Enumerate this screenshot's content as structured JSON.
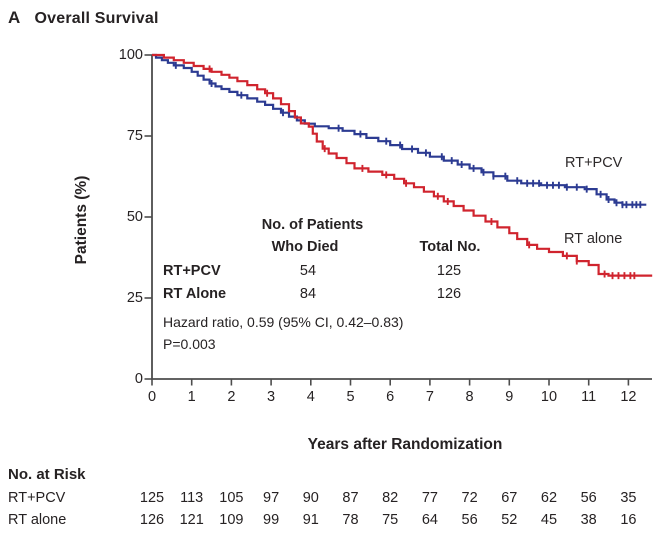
{
  "figure": {
    "panel_letter": "A",
    "title": "Overall Survival"
  },
  "chart_data": {
    "type": "line",
    "subtype": "kaplan-meier-step",
    "title": "Overall Survival",
    "xlabel": "Years after Randomization",
    "ylabel": "Patients (%)",
    "xlim": [
      0,
      12.7
    ],
    "ylim": [
      0,
      100
    ],
    "xticks": [
      0,
      1,
      2,
      3,
      4,
      5,
      6,
      7,
      8,
      9,
      10,
      11,
      12
    ],
    "yticks": [
      0,
      25,
      50,
      75,
      100
    ],
    "grid": false,
    "legend_position": "inline-right",
    "series": [
      {
        "name": "RT+PCV",
        "color": "#2c3b92",
        "points": [
          [
            0,
            100
          ],
          [
            0.1,
            99.2
          ],
          [
            0.25,
            98.4
          ],
          [
            0.4,
            97.6
          ],
          [
            0.55,
            96.8
          ],
          [
            0.8,
            96
          ],
          [
            1.0,
            94.8
          ],
          [
            1.15,
            93.6
          ],
          [
            1.3,
            92.4
          ],
          [
            1.45,
            91.2
          ],
          [
            1.6,
            90.3
          ],
          [
            1.75,
            89.5
          ],
          [
            1.95,
            88.6
          ],
          [
            2.15,
            87.6
          ],
          [
            2.4,
            86.6
          ],
          [
            2.65,
            85.6
          ],
          [
            2.85,
            84.6
          ],
          [
            3.05,
            83.4
          ],
          [
            3.25,
            82.2
          ],
          [
            3.45,
            81.0
          ],
          [
            3.65,
            79.8
          ],
          [
            3.85,
            78.8
          ],
          [
            4.1,
            78.0
          ],
          [
            4.45,
            77.4
          ],
          [
            4.8,
            76.6
          ],
          [
            5.1,
            75.6
          ],
          [
            5.4,
            74.4
          ],
          [
            5.7,
            73.4
          ],
          [
            6.0,
            72.2
          ],
          [
            6.3,
            71.0
          ],
          [
            6.7,
            69.8
          ],
          [
            7.0,
            68.6
          ],
          [
            7.35,
            67.4
          ],
          [
            7.7,
            66.2
          ],
          [
            8.0,
            65.0
          ],
          [
            8.3,
            63.8
          ],
          [
            8.6,
            62.6
          ],
          [
            8.95,
            61.2
          ],
          [
            9.3,
            60.4
          ],
          [
            9.8,
            59.8
          ],
          [
            10.4,
            59.2
          ],
          [
            10.9,
            58.6
          ],
          [
            11.2,
            57.0
          ],
          [
            11.45,
            55.4
          ],
          [
            11.65,
            54.4
          ],
          [
            11.85,
            53.8
          ],
          [
            12.45,
            53.8
          ]
        ],
        "censor_x": [
          0.6,
          1.5,
          2.25,
          3.3,
          4.7,
          5.25,
          5.9,
          6.25,
          6.55,
          6.9,
          7.3,
          7.55,
          7.8,
          8.1,
          8.35,
          8.6,
          8.9,
          9.2,
          9.45,
          9.6,
          9.75,
          9.95,
          10.1,
          10.25,
          10.45,
          10.7,
          10.95,
          11.3,
          11.5,
          11.7,
          11.85,
          11.95,
          12.1,
          12.2,
          12.3
        ]
      },
      {
        "name": "RT alone",
        "color": "#d0242e",
        "points": [
          [
            0,
            100
          ],
          [
            0.3,
            99.2
          ],
          [
            0.55,
            98.4
          ],
          [
            0.8,
            97.6
          ],
          [
            1.05,
            96.6
          ],
          [
            1.3,
            95.7
          ],
          [
            1.5,
            94.8
          ],
          [
            1.75,
            93.9
          ],
          [
            1.95,
            93.0
          ],
          [
            2.15,
            91.9
          ],
          [
            2.4,
            90.7
          ],
          [
            2.65,
            89.4
          ],
          [
            2.85,
            88.2
          ],
          [
            3.05,
            86.6
          ],
          [
            3.25,
            84.8
          ],
          [
            3.45,
            82.7
          ],
          [
            3.6,
            80.7
          ],
          [
            3.75,
            78.9
          ],
          [
            3.95,
            77.9
          ],
          [
            4.05,
            75.7
          ],
          [
            4.15,
            73.3
          ],
          [
            4.3,
            71.1
          ],
          [
            4.45,
            69.6
          ],
          [
            4.65,
            68.2
          ],
          [
            4.9,
            66.6
          ],
          [
            5.1,
            65.0
          ],
          [
            5.45,
            64.0
          ],
          [
            5.8,
            63.0
          ],
          [
            6.1,
            61.8
          ],
          [
            6.35,
            60.4
          ],
          [
            6.6,
            59.2
          ],
          [
            6.85,
            57.8
          ],
          [
            7.1,
            56.4
          ],
          [
            7.35,
            54.8
          ],
          [
            7.6,
            53.4
          ],
          [
            7.85,
            52.0
          ],
          [
            8.1,
            50.4
          ],
          [
            8.4,
            48.6
          ],
          [
            8.7,
            46.8
          ],
          [
            9.0,
            45.0
          ],
          [
            9.2,
            43.2
          ],
          [
            9.45,
            41.4
          ],
          [
            9.7,
            40.2
          ],
          [
            10.0,
            39.2
          ],
          [
            10.35,
            38.0
          ],
          [
            10.7,
            36.4
          ],
          [
            11.0,
            35.2
          ],
          [
            11.25,
            32.4
          ],
          [
            11.5,
            31.9
          ],
          [
            12.6,
            31.9
          ]
        ],
        "censor_x": [
          1.45,
          2.9,
          4.35,
          5.3,
          5.9,
          6.4,
          7.2,
          7.45,
          8.55,
          9.5,
          10.45,
          10.7,
          11.4,
          11.6,
          11.75,
          11.9,
          12.05,
          12.15
        ]
      }
    ]
  },
  "inset_stats": {
    "col1_header_line1": "No. of Patients",
    "col1_header_line2": "Who Died",
    "col2_header": "Total No.",
    "rows": [
      {
        "label": "RT+PCV",
        "died": "54",
        "total": "125"
      },
      {
        "label": "RT Alone",
        "died": "84",
        "total": "126"
      }
    ],
    "hazard_line": "Hazard ratio, 0.59 (95% CI, 0.42–0.83)",
    "p_line": "P=0.003"
  },
  "risk_table": {
    "title": "No. at Risk",
    "rows": [
      {
        "label": "RT+PCV",
        "counts": [
          125,
          113,
          105,
          97,
          90,
          87,
          82,
          77,
          72,
          67,
          62,
          56,
          35
        ]
      },
      {
        "label": "RT alone",
        "counts": [
          126,
          121,
          109,
          99,
          91,
          78,
          75,
          64,
          56,
          52,
          45,
          38,
          16
        ]
      }
    ]
  },
  "colors": {
    "blue": "#2c3b92",
    "red": "#d0242e",
    "axis": "#4d4d4d",
    "text": "#262223"
  }
}
